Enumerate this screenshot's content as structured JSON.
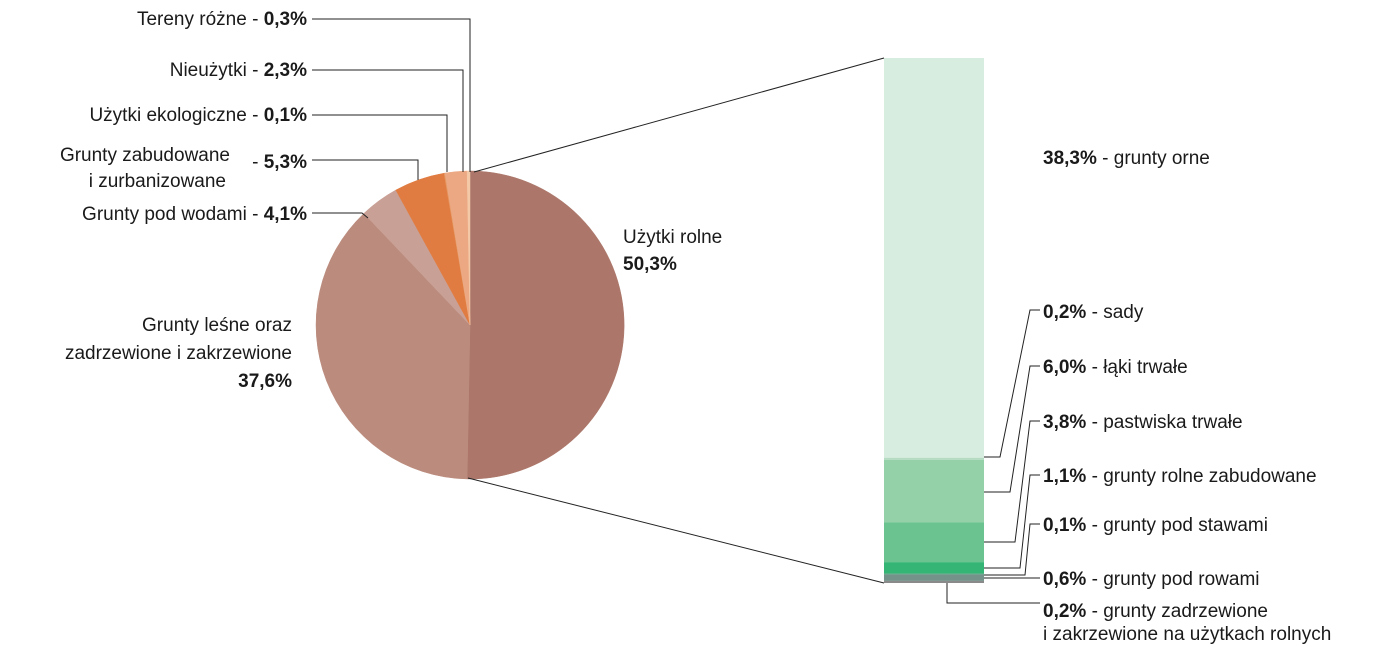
{
  "chart_data": {
    "type": "pie",
    "pie": {
      "slices": [
        {
          "key": "uzytki_rolne",
          "label": "Użytki rolne",
          "value": 50.3,
          "value_label": "50,3%",
          "color": "#ac776a"
        },
        {
          "key": "grunty_lesne",
          "label_lines": [
            "Grunty leśne oraz",
            "zadrzewione i zakrzewione"
          ],
          "value": 37.6,
          "value_label": "37,6%",
          "color": "#bb8c7e"
        },
        {
          "key": "grunty_pod_wodami",
          "label": "Grunty pod wodami - ",
          "value": 4.1,
          "value_label": "4,1%",
          "color": "#c9a095"
        },
        {
          "key": "grunty_zabudowane",
          "label_lines": [
            "Grunty zabudowane",
            "i zurbanizowane"
          ],
          "label_sep": "- ",
          "value": 5.3,
          "value_label": "5,3%",
          "color": "#e07c41"
        },
        {
          "key": "uzytki_ekologiczne",
          "label": "Użytki ekologiczne - ",
          "value": 0.1,
          "value_label": "0,1%",
          "color": "#e59660"
        },
        {
          "key": "nieuzytki",
          "label": "Nieużytki - ",
          "value": 2.3,
          "value_label": "2,3%",
          "color": "#eba882"
        },
        {
          "key": "tereny_rozne",
          "label": "Tereny różne - ",
          "value": 0.3,
          "value_label": "0,3%",
          "color": "#f4c9a8"
        }
      ]
    },
    "bar": {
      "segments": [
        {
          "key": "grunty_orne",
          "value": 38.3,
          "value_label": "38,3%",
          "label": " - grunty orne",
          "color": "#d7ede0"
        },
        {
          "key": "sady",
          "value": 0.2,
          "value_label": "0,2%",
          "label": " - sady",
          "color": "#b5dcc3"
        },
        {
          "key": "laki_trwale",
          "value": 6.0,
          "value_label": "6,0%",
          "label": " - łąki trwałe",
          "color": "#94d1a9"
        },
        {
          "key": "pastwiska_trwale",
          "value": 3.8,
          "value_label": "3,8%",
          "label": " - pastwiska trwałe",
          "color": "#6bc48f"
        },
        {
          "key": "grunty_rolne_zabudowane",
          "value": 1.1,
          "value_label": "1,1%",
          "label": " - grunty rolne zabudowane",
          "color": "#35b575"
        },
        {
          "key": "grunty_pod_stawami",
          "value": 0.1,
          "value_label": "0,1%",
          "label": " - grunty pod stawami",
          "color": "#5b9c80"
        },
        {
          "key": "grunty_pod_rowami",
          "value": 0.6,
          "value_label": "0,6%",
          "label": " - grunty pod rowami",
          "color": "#74918a"
        },
        {
          "key": "grunty_zadrzewione",
          "value": 0.2,
          "value_label": "0,2%",
          "label_lines": [
            " - grunty zadrzewione",
            "i zakrzewione na użytkach rolnych"
          ],
          "color": "#8a8a8a"
        }
      ]
    }
  }
}
